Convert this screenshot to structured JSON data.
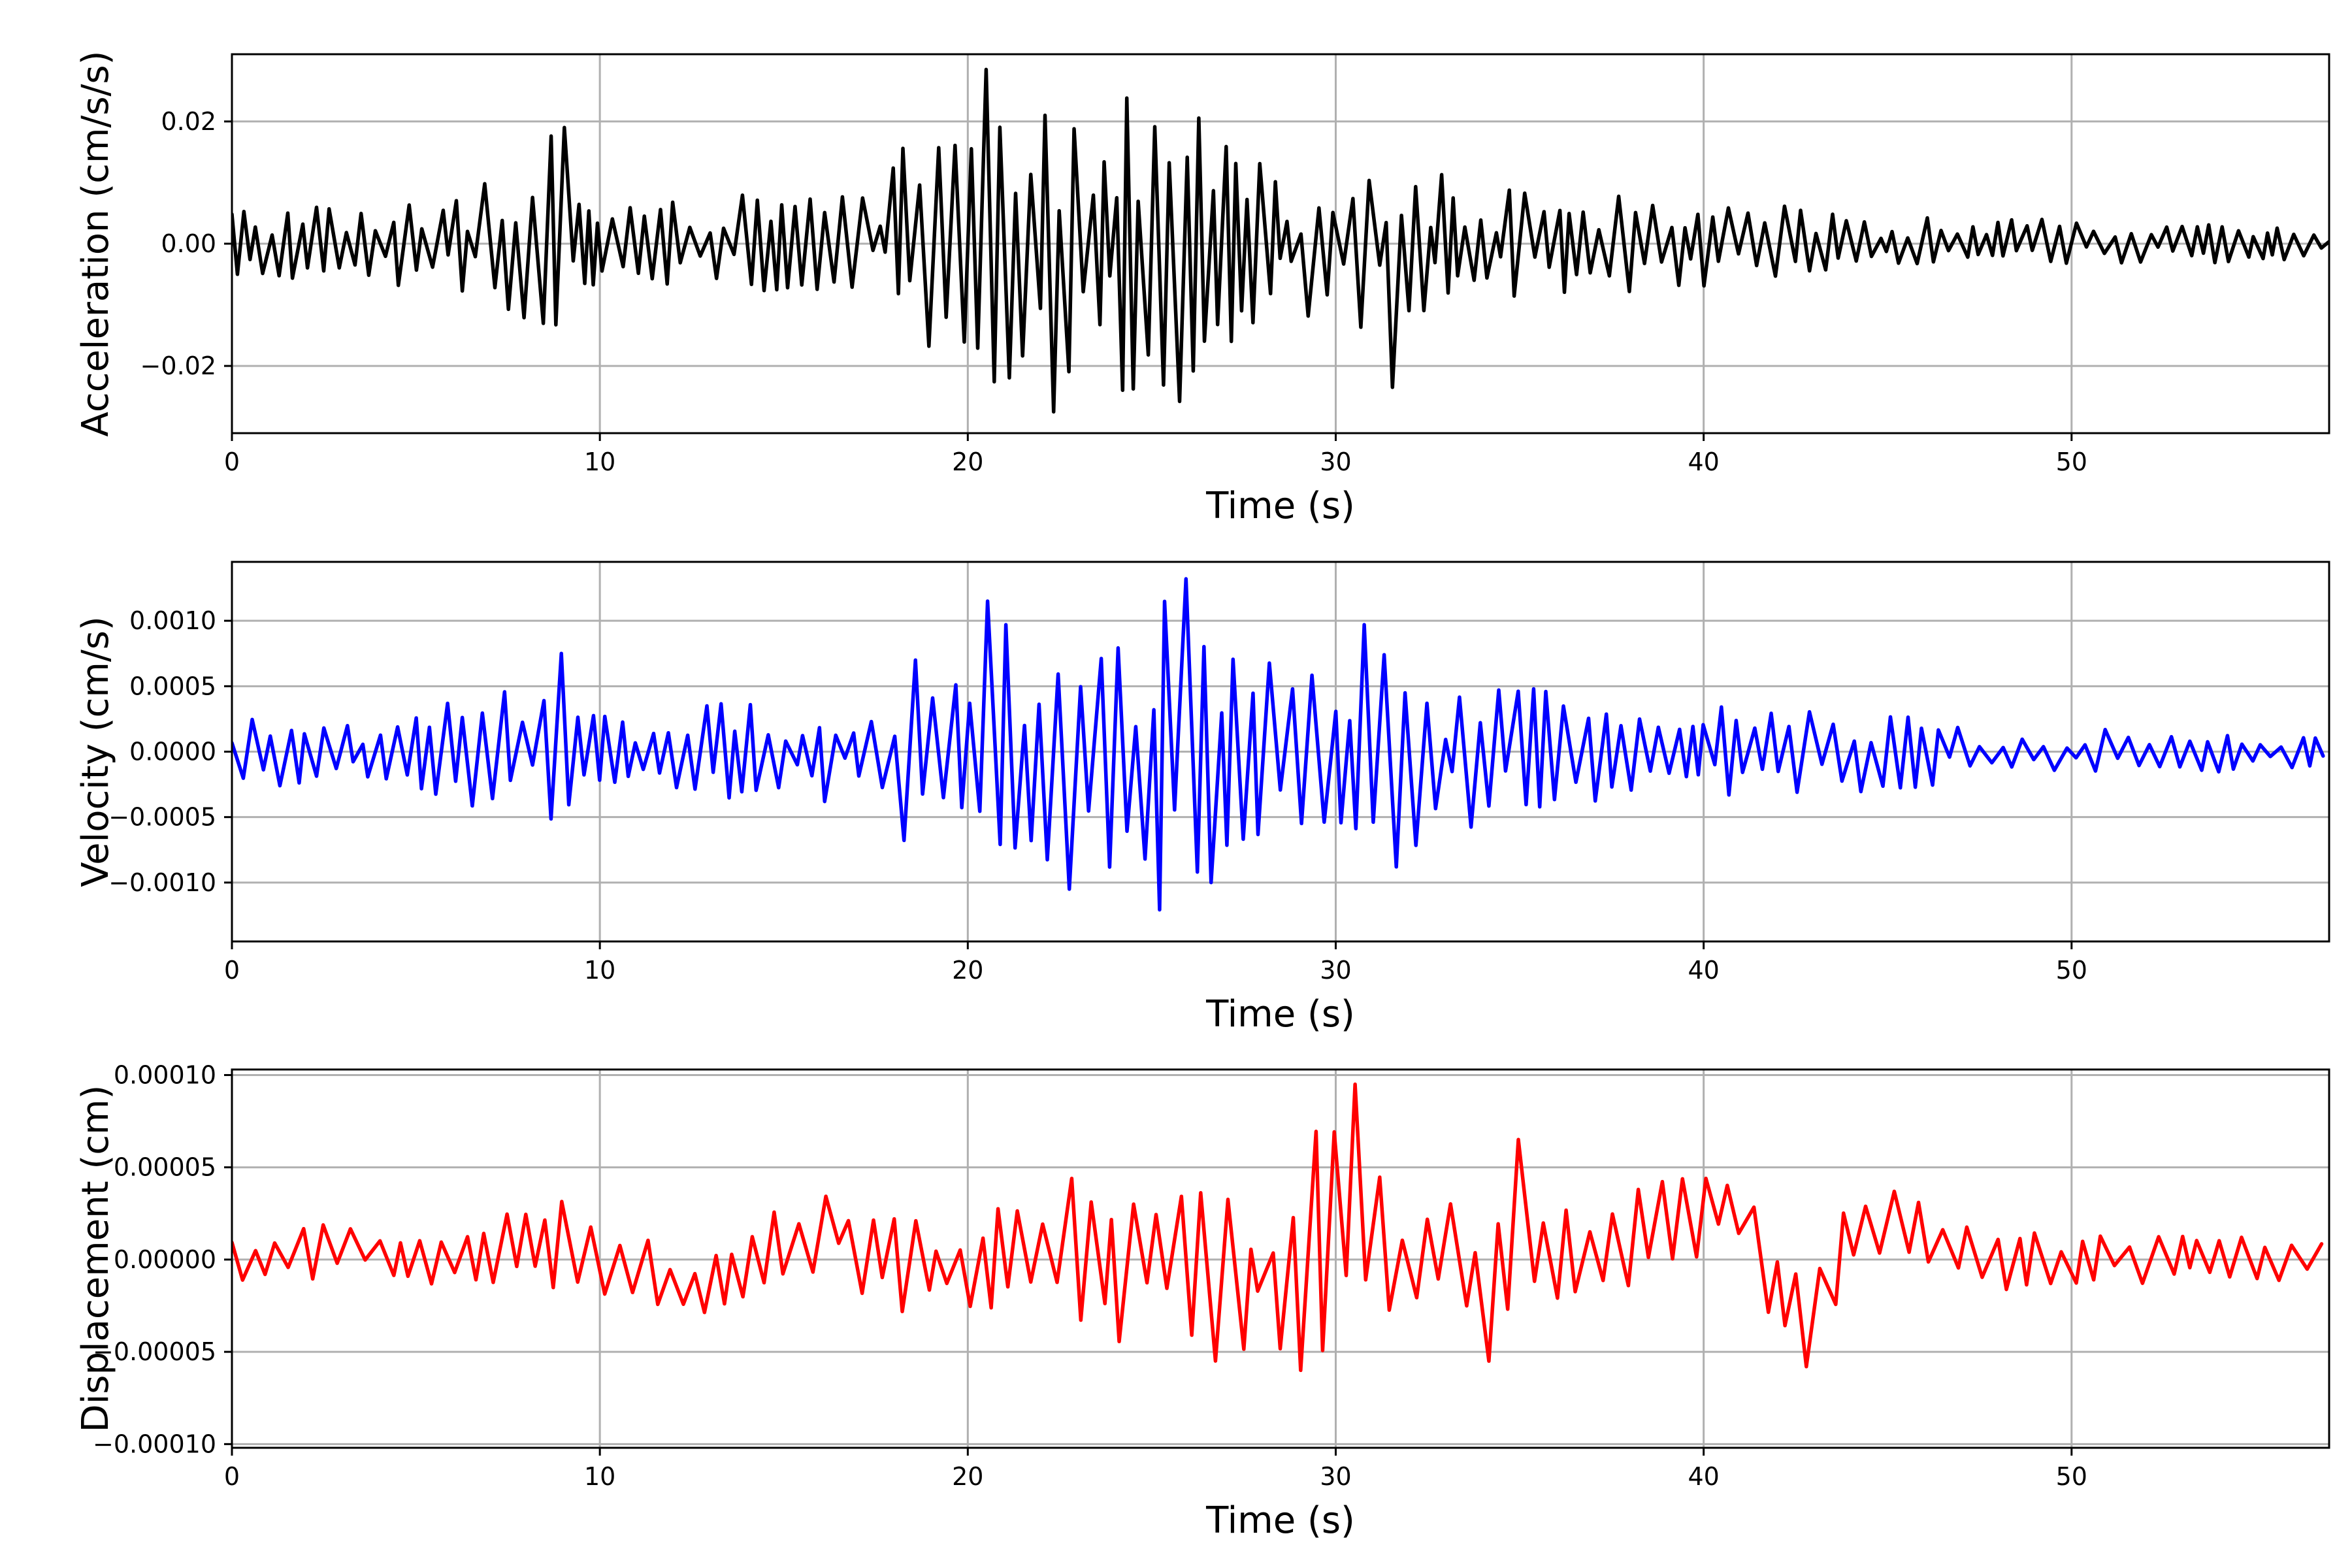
{
  "colors": {
    "acceleration": "#000000",
    "velocity": "#0000ff",
    "displacement": "#ff0000",
    "grid": "#b0b0b0"
  },
  "chart_data": [
    {
      "type": "line",
      "title": "",
      "xlabel": "Time (s)",
      "ylabel": "Acceleration (cm/s/s)",
      "xlim": [
        0,
        57
      ],
      "ylim": [
        -0.031,
        0.031
      ],
      "xticks": [
        0,
        10,
        20,
        30,
        40,
        50
      ],
      "xtick_labels": [
        "0",
        "10",
        "20",
        "30",
        "40",
        "50"
      ],
      "yticks": [
        -0.02,
        0.0,
        0.02
      ],
      "ytick_labels": [
        "−0.02",
        "0.00",
        "0.02"
      ],
      "grid": true,
      "series": [
        {
          "color": "#000000",
          "envelope": {
            "t": [
              0,
              5,
              8.8,
              9.5,
              12,
              16,
              17.5,
              18.3,
              20,
              20.6,
              22,
              23.5,
              24,
              25.8,
              27,
              28,
              30,
              31.5,
              33.5,
              35,
              38,
              40,
              45,
              50,
              55,
              57
            ],
            "amp": [
              0.006,
              0.007,
              0.018,
              0.008,
              0.007,
              0.009,
              0.007,
              0.017,
              0.019,
              0.028,
              0.022,
              0.021,
              0.025,
              0.024,
              0.017,
              0.013,
              0.012,
              0.016,
              0.01,
              0.009,
              0.008,
              0.007,
              0.005,
              0.004,
              0.003,
              0.002
            ]
          },
          "peaks": [
            {
              "t": 9.0,
              "y": 0.019
            },
            {
              "t": 20.6,
              "y": 0.0285
            },
            {
              "t": 22.5,
              "y": -0.0275
            },
            {
              "t": 25.8,
              "y": -0.0258
            },
            {
              "t": 31.5,
              "y": -0.0235
            }
          ]
        }
      ]
    },
    {
      "type": "line",
      "title": "",
      "xlabel": "Time (s)",
      "ylabel": "Velocity (cm/s)",
      "xlim": [
        0,
        57
      ],
      "ylim": [
        -0.00145,
        0.00145
      ],
      "xticks": [
        0,
        10,
        20,
        30,
        40,
        50
      ],
      "xtick_labels": [
        "0",
        "10",
        "20",
        "30",
        "40",
        "50"
      ],
      "yticks": [
        -0.001,
        -0.0005,
        0.0,
        0.0005,
        0.001
      ],
      "ytick_labels": [
        "−0.0010",
        "−0.0005",
        "0.0000",
        "0.0005",
        "0.0010"
      ],
      "grid": true,
      "series": [
        {
          "color": "#0000ff",
          "envelope": {
            "t": [
              0,
              5,
              8.8,
              9.5,
              12,
              16,
              17.5,
              18.3,
              20,
              20.6,
              22,
              23.5,
              25.8,
              27,
              28,
              30,
              30.7,
              31.5,
              33.5,
              35,
              38,
              40,
              45,
              50,
              55,
              57
            ],
            "amp": [
              0.00025,
              0.0003,
              0.00075,
              0.0003,
              0.00035,
              0.0004,
              0.00025,
              0.0007,
              0.0007,
              0.00115,
              0.0009,
              0.0009,
              0.00133,
              0.0009,
              0.0007,
              0.0007,
              0.00095,
              0.0009,
              0.0006,
              0.0005,
              0.0004,
              0.00035,
              0.0003,
              0.0002,
              0.00015,
              0.0001
            ]
          },
          "peaks": [
            {
              "t": 9.0,
              "y": 0.00075
            },
            {
              "t": 20.6,
              "y": 0.00115
            },
            {
              "t": 22.5,
              "y": -0.00105
            },
            {
              "t": 25.8,
              "y": 0.00132
            },
            {
              "t": 26.5,
              "y": -0.001
            },
            {
              "t": 30.7,
              "y": 0.00097
            },
            {
              "t": 31.5,
              "y": -0.00088
            }
          ]
        }
      ]
    },
    {
      "type": "line",
      "title": "",
      "xlabel": "Time (s)",
      "ylabel": "Displacement (cm)",
      "xlim": [
        0,
        57
      ],
      "ylim": [
        -0.000102,
        0.000103
      ],
      "xticks": [
        0,
        10,
        20,
        30,
        40,
        50
      ],
      "xtick_labels": [
        "0",
        "10",
        "20",
        "30",
        "40",
        "50"
      ],
      "yticks": [
        -0.0001,
        -5e-05,
        0.0,
        5e-05,
        0.0001
      ],
      "ytick_labels": [
        "−0.00010",
        "−0.00005",
        "0.00000",
        "0.00005",
        "0.00010"
      ],
      "grid": true,
      "series": [
        {
          "color": "#ff0000",
          "envelope": {
            "t": [
              0,
              5,
              9,
              12,
              16,
              18,
              20.5,
              22,
              25,
              26,
              28,
              29,
              30.6,
              32,
              34,
              34.8,
              36,
              38,
              40,
              43,
              45,
              50,
              55,
              57
            ],
            "amp": [
              1.5e-05,
              1.5e-05,
              2.5e-05,
              2e-05,
              2e-05,
              3e-05,
              4e-05,
              4e-05,
              5.5e-05,
              5e-05,
              4.5e-05,
              5.5e-05,
              8e-05,
              4e-05,
              4e-05,
              5e-05,
              3e-05,
              3e-05,
              2.5e-05,
              2.5e-05,
              2e-05,
              1.5e-05,
              1.2e-05,
              1e-05
            ]
          },
          "trend": {
            "t": [
              0,
              3,
              6,
              9,
              11,
              12.5,
              15,
              16.5,
              18.5,
              20,
              24,
              28,
              30,
              32,
              34,
              36,
              38,
              40.3,
              41,
              42.7,
              44,
              45.5,
              48,
              52,
              55,
              57
            ],
            "y": [
              0.0,
              5e-06,
              0.0,
              1e-05,
              0.0,
              -2e-05,
              1e-05,
              1.5e-05,
              -1e-05,
              0.0,
              0.0,
              -1e-05,
              1.5e-05,
              0.0,
              -1e-05,
              0.0,
              1e-05,
              3e-05,
              2e-05,
              -3.5e-05,
              1e-05,
              2e-05,
              0.0,
              0.0,
              0.0,
              0.0
            ]
          },
          "peaks": [
            {
              "t": 30.6,
              "y": 9.5e-05
            },
            {
              "t": 34.8,
              "y": 6.5e-05
            },
            {
              "t": 28.9,
              "y": -6e-05
            },
            {
              "t": 42.7,
              "y": -5.8e-05
            },
            {
              "t": 34.2,
              "y": -5.5e-05
            }
          ]
        }
      ]
    }
  ]
}
